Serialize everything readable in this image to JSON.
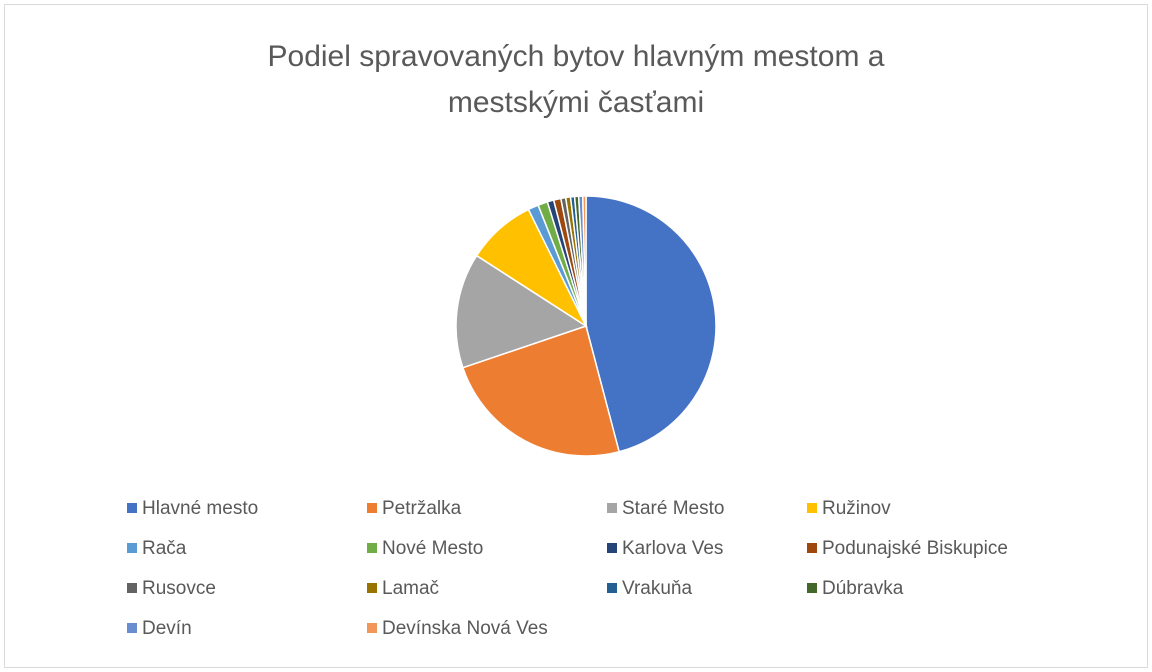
{
  "chart_data": {
    "type": "pie",
    "title": "Podiel spravovaných bytov hlavným mestom a mestskými časťami",
    "categories": [
      "Hlavné mesto",
      "Petržalka",
      "Staré Mesto",
      "Ružinov",
      "Rača",
      "Nové Mesto",
      "Karlova Ves",
      "Podunajské Biskupice",
      "Rusovce",
      "Lamač",
      "Vrakuňa",
      "Dúbravka",
      "Devín",
      "Devínska Nová Ves"
    ],
    "values": [
      45.9,
      23.9,
      14.3,
      8.6,
      1.3,
      1.2,
      0.8,
      0.9,
      0.6,
      0.6,
      0.5,
      0.5,
      0.5,
      0.4
    ],
    "colors": [
      "#4472c4",
      "#ed7d31",
      "#a5a5a5",
      "#ffc000",
      "#5b9bd5",
      "#70ad47",
      "#264478",
      "#9e480e",
      "#636363",
      "#997300",
      "#255e91",
      "#43682b",
      "#698ed0",
      "#f1975a"
    ],
    "legend": "bottom"
  }
}
